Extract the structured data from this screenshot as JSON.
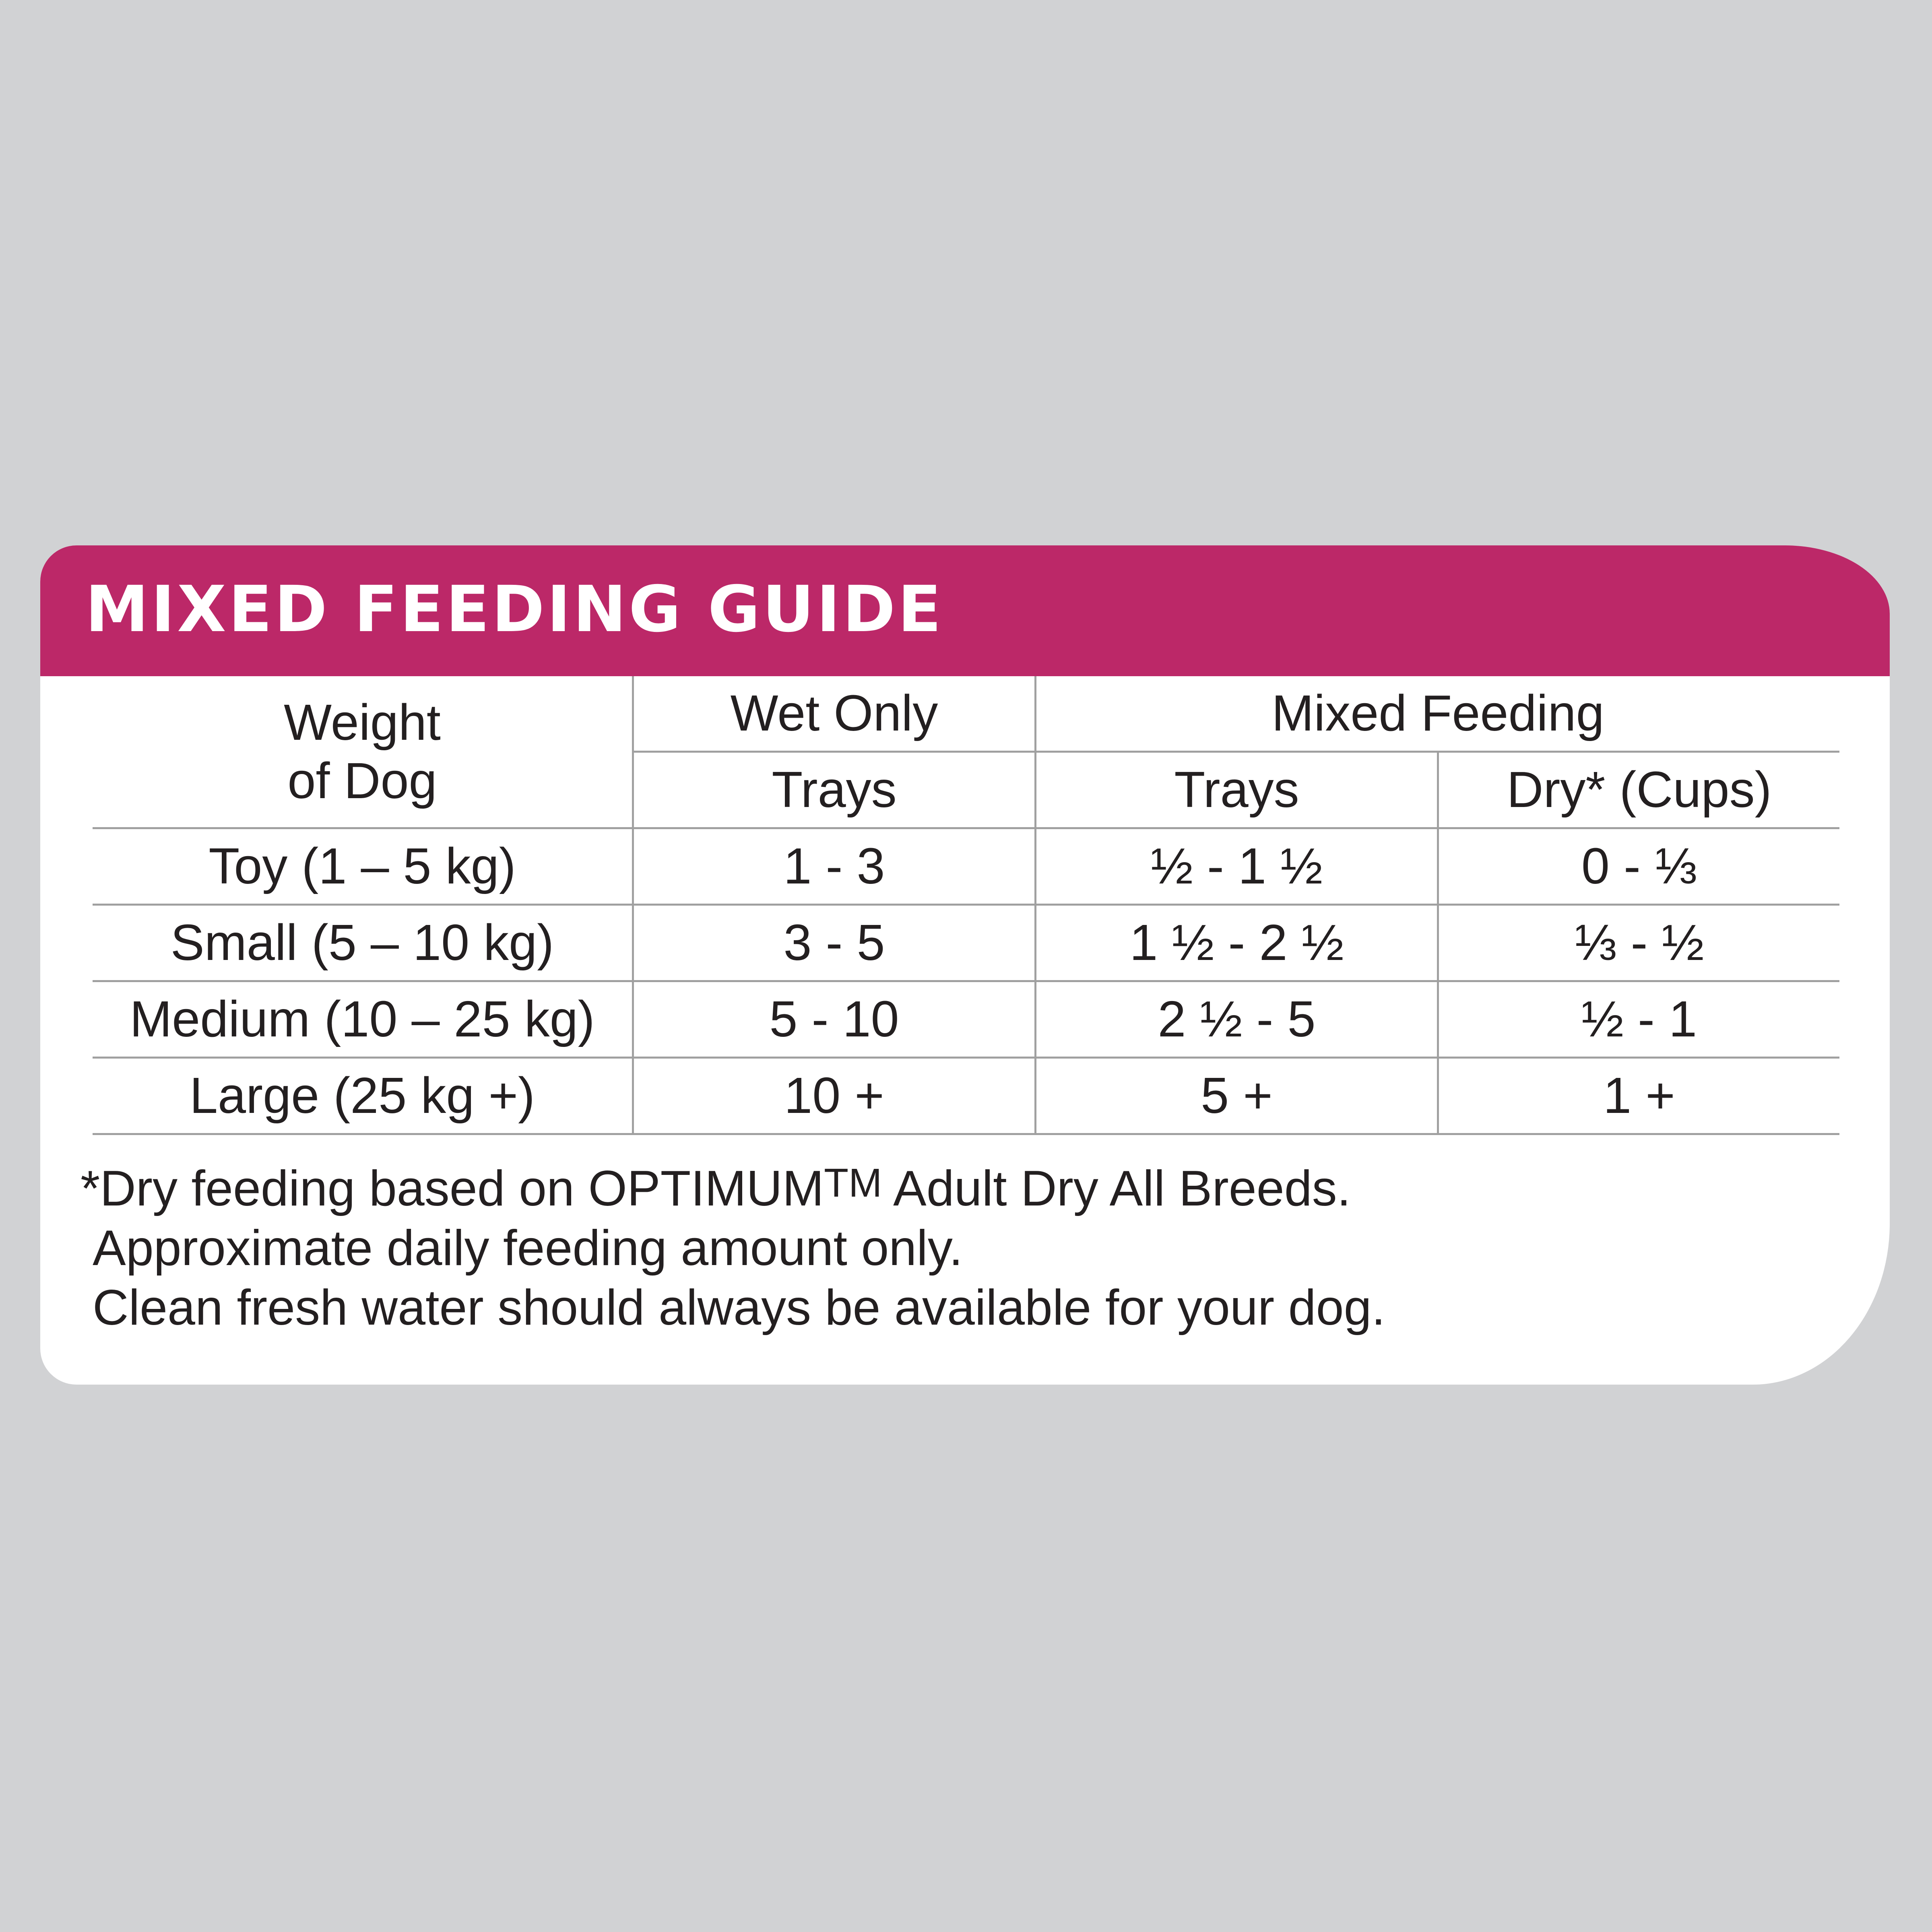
{
  "guide": {
    "title": "MIXED FEEDING GUIDE",
    "headers": {
      "weight_line1": "Weight",
      "weight_line2": "of Dog",
      "wet_only": "Wet Only",
      "mixed_feeding": "Mixed Feeding",
      "wet_trays": "Trays",
      "mixed_trays": "Trays",
      "mixed_dry": "Dry* (Cups)"
    },
    "rows": [
      {
        "weight": "Toy (1 – 5 kg)",
        "wet_trays": "1 - 3",
        "mixed_trays": "½ - 1 ½",
        "dry_cups": "0 - ⅓"
      },
      {
        "weight": "Small (5 – 10 kg)",
        "wet_trays": "3 - 5",
        "mixed_trays": "1 ½ - 2 ½",
        "dry_cups": "⅓ - ½"
      },
      {
        "weight": "Medium (10 – 25 kg)",
        "wet_trays": "5 - 10",
        "mixed_trays": "2 ½ - 5",
        "dry_cups": "½ - 1"
      },
      {
        "weight": "Large (25 kg +)",
        "wet_trays": "10 +",
        "mixed_trays": "5 +",
        "dry_cups": "1 +"
      }
    ],
    "notes": {
      "line1_prefix": "*Dry feeding based on OPTIMUM",
      "line1_tm": "TM",
      "line1_suffix": " Adult Dry All Breeds.",
      "line2": "Approximate daily feeding amount only.",
      "line3": "Clean fresh water should always be available for your dog."
    }
  },
  "colors": {
    "background": "#d1d2d4",
    "banner": "#bc2868",
    "card": "#ffffff",
    "text": "#231f20",
    "rule": "#a0a0a0"
  }
}
